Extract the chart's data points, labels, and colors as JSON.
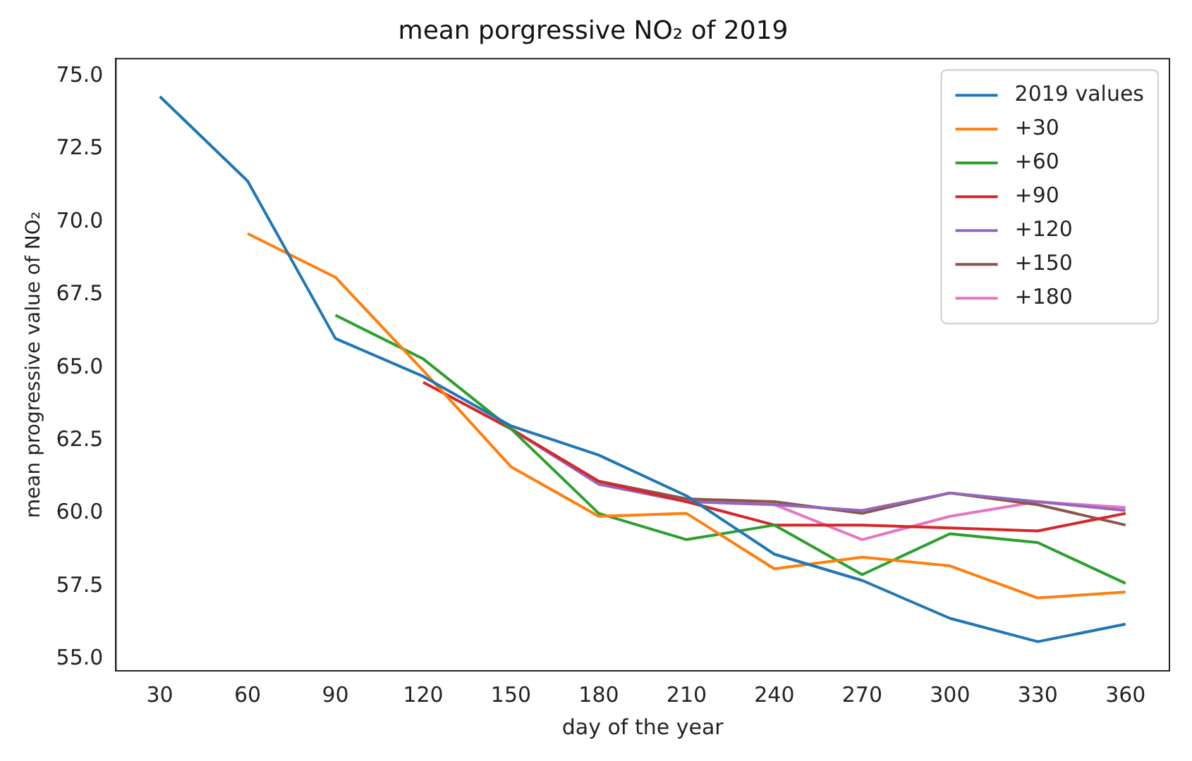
{
  "chart_data": {
    "type": "line",
    "title": "mean porgressive NO₂ of 2019",
    "xlabel": "day of the year",
    "ylabel": "mean progressive value of NO₂",
    "categories": [
      "30",
      "60",
      "90",
      "120",
      "150",
      "180",
      "210",
      "240",
      "270",
      "300",
      "330",
      "360"
    ],
    "series": [
      {
        "name": "2019 values",
        "color": "#1f77b4",
        "values": [
          74.3,
          71.4,
          66.0,
          64.7,
          63.0,
          62.0,
          60.6,
          58.6,
          57.7,
          56.4,
          55.6,
          56.2
        ]
      },
      {
        "name": "+30",
        "color": "#ff7f0e",
        "values": [
          null,
          69.6,
          68.1,
          64.9,
          61.6,
          59.9,
          60.0,
          58.1,
          58.5,
          58.2,
          57.1,
          57.3
        ]
      },
      {
        "name": "+60",
        "color": "#2ca02c",
        "values": [
          null,
          null,
          66.8,
          65.3,
          62.9,
          60.0,
          59.1,
          59.6,
          57.9,
          59.3,
          59.0,
          57.6
        ]
      },
      {
        "name": "+90",
        "color": "#d62728",
        "values": [
          null,
          null,
          null,
          64.5,
          62.9,
          61.1,
          60.4,
          59.6,
          59.6,
          59.5,
          59.4,
          60.0
        ]
      },
      {
        "name": "+120",
        "color": "#9467bd",
        "values": [
          null,
          null,
          null,
          null,
          62.9,
          61.0,
          60.4,
          60.3,
          60.1,
          60.7,
          60.4,
          60.1
        ]
      },
      {
        "name": "+150",
        "color": "#8c564b",
        "values": [
          null,
          null,
          null,
          null,
          null,
          61.1,
          60.5,
          60.4,
          60.0,
          60.7,
          60.3,
          59.6
        ]
      },
      {
        "name": "+180",
        "color": "#e377c2",
        "values": [
          null,
          null,
          null,
          null,
          null,
          null,
          60.5,
          60.3,
          59.1,
          59.9,
          60.4,
          60.2
        ]
      }
    ],
    "ylim": [
      54.6,
      75.6
    ],
    "yticks": [
      {
        "value": 55,
        "label": "55.0"
      },
      {
        "value": 57.5,
        "label": "57.5"
      },
      {
        "value": 60,
        "label": "60.0"
      },
      {
        "value": 62.5,
        "label": "62.5"
      },
      {
        "value": 65,
        "label": "65.0"
      },
      {
        "value": 67.5,
        "label": "67.5"
      },
      {
        "value": 70,
        "label": "70.0"
      },
      {
        "value": 72.5,
        "label": "72.5"
      },
      {
        "value": 75,
        "label": "75.0"
      }
    ],
    "grid": false,
    "legend": "top right",
    "marker": "none",
    "line_style": "solid"
  }
}
